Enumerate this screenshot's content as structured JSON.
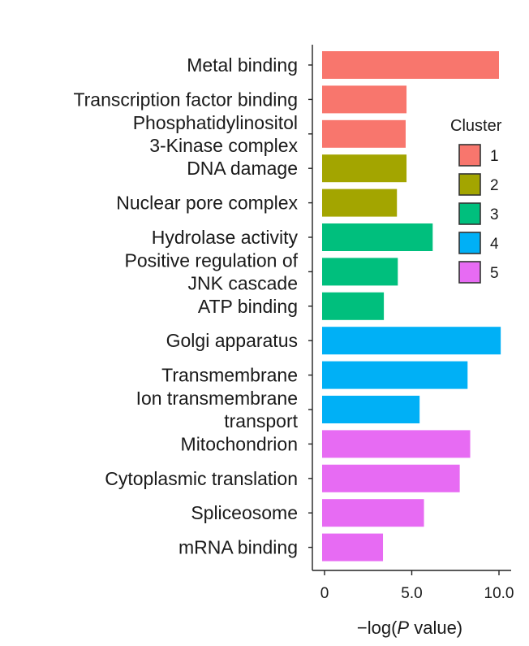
{
  "chart_data": {
    "type": "bar",
    "orientation": "horizontal",
    "categories": [
      [
        "Metal binding"
      ],
      [
        "Transcription factor binding"
      ],
      [
        "Phosphatidylinositol",
        "3-Kinase complex"
      ],
      [
        "DNA damage"
      ],
      [
        "Nuclear pore complex"
      ],
      [
        "Hydrolase activity"
      ],
      [
        "Positive regulation of",
        "JNK cascade"
      ],
      [
        "ATP binding"
      ],
      [
        "Golgi apparatus"
      ],
      [
        "Transmembrane"
      ],
      [
        "Ion transmembrane",
        "transport"
      ],
      [
        "Mitochondrion"
      ],
      [
        "Cytoplasmic translation"
      ],
      [
        "Spliceosome"
      ],
      [
        "mRNA binding"
      ]
    ],
    "values": [
      10.0,
      4.7,
      4.65,
      4.7,
      4.15,
      6.2,
      4.2,
      3.4,
      10.1,
      8.2,
      5.45,
      8.35,
      7.75,
      5.7,
      3.35
    ],
    "clusters": [
      "1",
      "1",
      "1",
      "2",
      "2",
      "3",
      "3",
      "3",
      "4",
      "4",
      "4",
      "5",
      "5",
      "5",
      "5"
    ],
    "xlim": [
      -0.7,
      10.6
    ],
    "xticks": [
      "0",
      "5.0",
      "10.0"
    ],
    "xtick_values": [
      0,
      5,
      10
    ],
    "xlabel": "−log(P value)",
    "xlabel_parts": [
      "−log(",
      "P",
      " value)"
    ],
    "legend": {
      "title": "Cluster",
      "placement": "right",
      "items": [
        {
          "label": "1",
          "color": "#F8766D"
        },
        {
          "label": "2",
          "color": "#A3A500"
        },
        {
          "label": "3",
          "color": "#00BF7D"
        },
        {
          "label": "4",
          "color": "#00B0F6"
        },
        {
          "label": "5",
          "color": "#E76BF3"
        }
      ]
    },
    "grid": false
  }
}
